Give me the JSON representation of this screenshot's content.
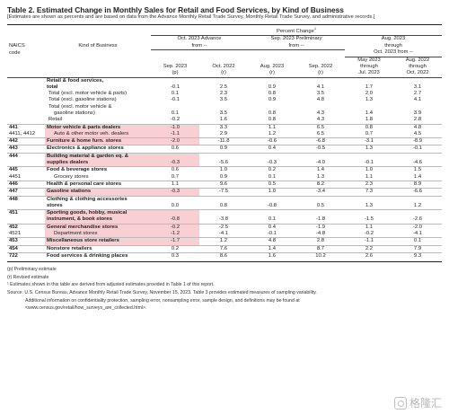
{
  "title": "Table 2.  Estimated Change in Monthly Sales for Retail and Food Services, by Kind of Business",
  "subtitle": "[Estimates are shown as percents and are based on data from the Advance Monthly Retail Trade Survey,  Monthly Retail Trade Survey, and administrative records.]",
  "header": {
    "naics": "NAICS",
    "code": "code",
    "kind": "Kind of Business",
    "percent_change": "Percent Change",
    "percent_change_sup": "1",
    "oct_adv_1": "Oct. 2023 Advance",
    "oct_adv_2": "from --",
    "sep_pre_1": "Sep. 2023 Preliminary",
    "sep_pre_2": "from --",
    "aug_1": "Aug. 2023",
    "aug_2": "through",
    "aug_3": "Oct. 2023 from --",
    "c1a": "Sep. 2023",
    "c1b": "(p)",
    "c2a": "Oct. 2022",
    "c2b": "(r)",
    "c3a": "Aug. 2023",
    "c3b": "(r)",
    "c4a": "Sep. 2022",
    "c4b": "(r)",
    "c5a": "May 2023",
    "c5b": "through",
    "c5c": "Jul. 2023",
    "c6a": "Aug. 2022",
    "c6b": "through",
    "c6c": "Oct. 2022"
  },
  "rows": [
    {
      "code": "",
      "kind": "Retail & food services,",
      "v": [
        "",
        "",
        "",
        "",
        "",
        ""
      ]
    },
    {
      "code": "",
      "kind": "total",
      "v": [
        "-0.1",
        "2.5",
        "0.9",
        "4.1",
        "1.7",
        "3.1"
      ]
    },
    {
      "code": "",
      "kind": "Total (excl. motor vehicle & parts)",
      "v": [
        "0.1",
        "2.3",
        "0.8",
        "3.5",
        "2.0",
        "2.7"
      ]
    },
    {
      "code": "",
      "kind": "Total (excl. gasoline stations)",
      "v": [
        "-0.1",
        "3.5",
        "0.9",
        "4.8",
        "1.3",
        "4.1"
      ]
    },
    {
      "code": "",
      "kind": "Total (excl. motor vehicle &",
      "v": [
        "",
        "",
        "",
        "",
        "",
        ""
      ]
    },
    {
      "code": "",
      "kind": "gasoline stations)",
      "v": [
        "0.1",
        "3.5",
        "0.8",
        "4.3",
        "1.4",
        "3.9"
      ]
    },
    {
      "code": "",
      "kind": "Retail",
      "v": [
        "-0.2",
        "1.6",
        "0.8",
        "4.3",
        "1.8",
        "2.8"
      ]
    },
    {
      "code": "441",
      "kind": "Motor vehicle & parts dealers",
      "v": [
        "-1.0",
        "3.3",
        "1.1",
        "6.5",
        "0.8",
        "4.8"
      ]
    },
    {
      "code": "4411, 4412",
      "kind": "Auto & other motor veh. dealers",
      "v": [
        "-1.1",
        "2.9",
        "1.2",
        "6.5",
        "0.7",
        "4.5"
      ]
    },
    {
      "code": "442",
      "kind": "Furniture & home furn. stores",
      "v": [
        "-2.0",
        "-11.8",
        "-0.6",
        "-6.8",
        "-3.1",
        "-8.9"
      ]
    },
    {
      "code": "443",
      "kind": "Electronics & appliance stores",
      "v": [
        "0.6",
        "0.9",
        "0.4",
        "-0.5",
        "1.3",
        "-0.1"
      ]
    },
    {
      "code": "444",
      "kind": "Building material & garden eq. &",
      "v": [
        "",
        "",
        "",
        "",
        "",
        ""
      ]
    },
    {
      "code": "",
      "kind": "supplies dealers",
      "v": [
        "-0.3",
        "-5.6",
        "-0.3",
        "-4.0",
        "-0.1",
        "-4.6"
      ]
    },
    {
      "code": "445",
      "kind": "Food & beverage stores",
      "v": [
        "0.6",
        "1.0",
        "0.2",
        "1.4",
        "1.0",
        "1.5"
      ]
    },
    {
      "code": "4451",
      "kind": "Grocery stores",
      "v": [
        "0.7",
        "0.9",
        "0.1",
        "1.3",
        "1.1",
        "1.4"
      ]
    },
    {
      "code": "446",
      "kind": "Health & personal care stores",
      "v": [
        "1.1",
        "9.6",
        "0.5",
        "8.2",
        "2.3",
        "8.9"
      ]
    },
    {
      "code": "447",
      "kind": "Gasoline stations",
      "v": [
        "-0.3",
        "-7.5",
        "1.0",
        "-3.4",
        "7.3",
        "-6.6"
      ]
    },
    {
      "code": "448",
      "kind": "Clothing & clothing accessories",
      "v": [
        "",
        "",
        "",
        "",
        "",
        ""
      ]
    },
    {
      "code": "",
      "kind": "stores",
      "v": [
        "0.0",
        "0.8",
        "-0.8",
        "0.5",
        "1.3",
        "1.2"
      ]
    },
    {
      "code": "451",
      "kind": "Sporting goods, hobby, musical",
      "v": [
        "",
        "",
        "",
        "",
        "",
        ""
      ]
    },
    {
      "code": "",
      "kind": "instrument, & book stores",
      "v": [
        "-0.8",
        "-3.8",
        "0.1",
        "-1.8",
        "-1.5",
        "-2.6"
      ]
    },
    {
      "code": "452",
      "kind": "General merchandise stores",
      "v": [
        "-0.2",
        "-2.5",
        "0.4",
        "-1.9",
        "1.1",
        "-2.0"
      ]
    },
    {
      "code": "4521",
      "kind": "Department stores",
      "v": [
        "-1.2",
        "-4.1",
        "-0.1",
        "-4.8",
        "-0.2",
        "-4.1"
      ]
    },
    {
      "code": "453",
      "kind": "Miscellaneous store retailers",
      "v": [
        "-1.7",
        "1.2",
        "4.8",
        "2.8",
        "-1.1",
        "0.1"
      ]
    },
    {
      "code": "454",
      "kind": "Nonstore retailers",
      "v": [
        "0.2",
        "7.6",
        "1.4",
        "8.7",
        "2.2",
        "7.9"
      ]
    },
    {
      "code": "722",
      "kind": "Food services & drinking places",
      "v": [
        "0.3",
        "8.6",
        "1.6",
        "10.2",
        "2.6",
        "9.3"
      ]
    }
  ],
  "footnotes": {
    "legend_p": "(p)  Preliminary estimate",
    "legend_r": "(r)   Revised estimate",
    "note1": "¹   Estimates shown in this table are derived from adjusted estimates provided  in Table 1 of this report.",
    "source": "Source:  U.S. Census Bureau, Advance Monthly Retail Trade Survey, November 15, 2023. Table 3 provides estimated measures of sampling variability.",
    "source2": "Additional information on confidentiality protection, sampling error, nonsampling error, sample design, and definitions may be found at",
    "url": "<www.census.gov/retail/how_surveys_are_collected.html>."
  },
  "watermark": "格隆汇",
  "colors": {
    "highlight": "#f8cfd3"
  }
}
